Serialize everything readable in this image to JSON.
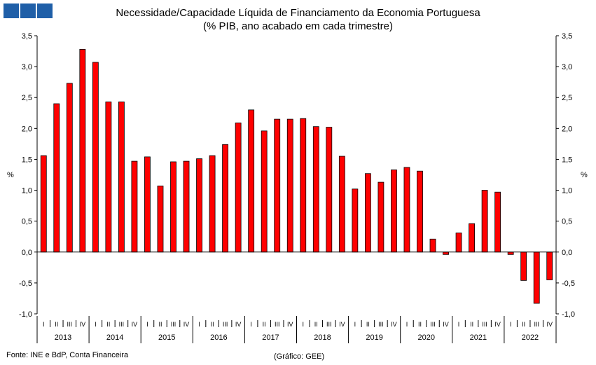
{
  "header": {
    "title_line1": "Necessidade/Capacidade Líquida de Financiamento da Economia Portuguesa",
    "title_line2": "(% PIB, ano acabado em cada trimestre)"
  },
  "footer": {
    "source": "Fonte: INE e BdP, Conta Financeira",
    "credit": "(Gráfico: GEE)"
  },
  "chart_data": {
    "type": "bar",
    "title": "Necessidade/Capacidade Líquida de Financiamento da Economia Portuguesa",
    "subtitle": "(% PIB, ano acabado em cada trimestre)",
    "ylabel": "%",
    "ylabel_right": "%",
    "ylim": [
      -1.0,
      3.5
    ],
    "ytick_values": [
      -1.0,
      -0.5,
      0.0,
      0.5,
      1.0,
      1.5,
      2.0,
      2.5,
      3.0,
      3.5
    ],
    "ytick_labels": [
      "-1,0",
      "-0,5",
      "0,0",
      "0,5",
      "1,0",
      "1,5",
      "2,0",
      "2,5",
      "3,0",
      "3,5"
    ],
    "grid": false,
    "bar_color": "#ff0000",
    "years": [
      "2013",
      "2014",
      "2015",
      "2016",
      "2017",
      "2018",
      "2019",
      "2020",
      "2021",
      "2022"
    ],
    "quarters": [
      "I",
      "II",
      "III",
      "IV"
    ],
    "values": [
      1.56,
      2.4,
      2.73,
      3.28,
      3.07,
      2.43,
      2.43,
      1.47,
      1.54,
      1.07,
      1.46,
      1.47,
      1.51,
      1.56,
      1.74,
      2.09,
      2.3,
      1.96,
      2.15,
      2.15,
      2.16,
      2.03,
      2.02,
      1.55,
      1.02,
      1.27,
      1.13,
      1.33,
      1.37,
      1.31,
      0.21,
      -0.04,
      0.31,
      0.46,
      1.0,
      0.97,
      -0.04,
      -0.46,
      -0.83,
      -0.45
    ]
  }
}
